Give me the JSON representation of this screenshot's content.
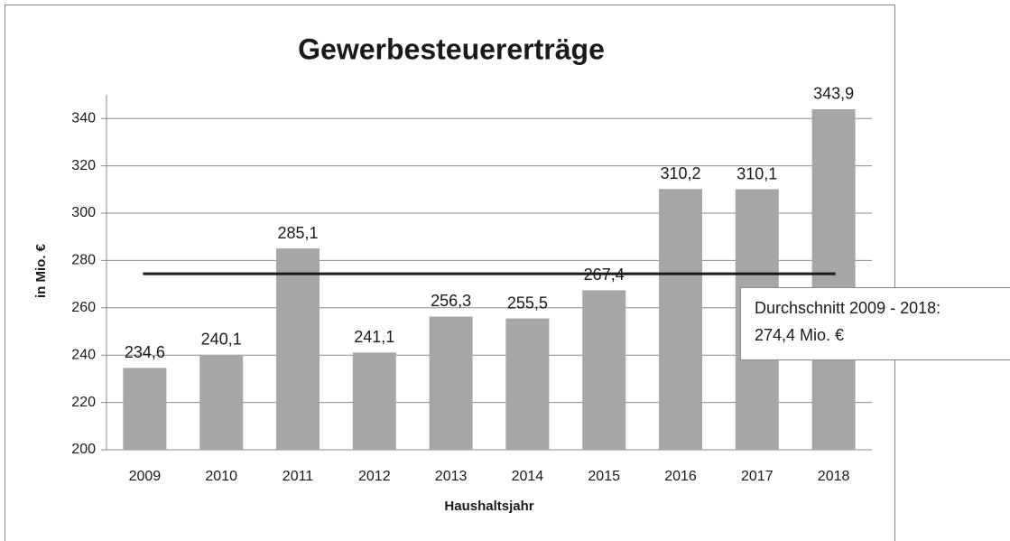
{
  "chart_data": {
    "type": "bar",
    "title": "Gewerbesteuererträge",
    "x_label": "Haushaltsjahr",
    "y_label": "in Mio. €",
    "categories": [
      "2009",
      "2010",
      "2011",
      "2012",
      "2013",
      "2014",
      "2015",
      "2016",
      "2017",
      "2018"
    ],
    "values": [
      234.6,
      240.1,
      285.1,
      241.1,
      256.3,
      255.5,
      267.4,
      310.2,
      310.1,
      343.9
    ],
    "value_labels": [
      "234,6",
      "240,1",
      "285,1",
      "241,1",
      "256,3",
      "255,5",
      "267,4",
      "310,2",
      "310,1",
      "343,9"
    ],
    "color": "#a6a6a8",
    "ylim": [
      200,
      350
    ],
    "yticks": [
      200,
      220,
      240,
      260,
      280,
      300,
      320,
      340
    ],
    "grid": true,
    "average": {
      "value": 274.4,
      "color": "#1a1a1a",
      "label": [
        "Durchschnitt 2009 - 2018:",
        "274,4 Mio. €"
      ]
    }
  }
}
